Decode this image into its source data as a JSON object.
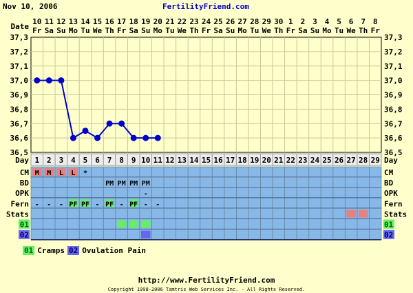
{
  "header": {
    "date": "Nov 10, 2006",
    "site": "FertilityFriend.com"
  },
  "labels": {
    "date": "Date",
    "day": "Day",
    "rows": [
      "CM",
      "BD",
      "OPK",
      "Fern",
      "Stats",
      "01",
      "02"
    ]
  },
  "colors": {
    "plot_bg": "#ffffcc",
    "grid": "#c8c89a",
    "line": "#0000cc",
    "row_bg": "#88b8e8",
    "red_cell": "#e88080",
    "green_cell": "#66ee66",
    "blue_cell": "#6666ee",
    "day_bg": "#eeeeee"
  },
  "chart_data": {
    "type": "line",
    "ylim": [
      36.5,
      37.3
    ],
    "yticks": [
      "37,3",
      "37,2",
      "37,1",
      "37,0",
      "36,9",
      "36,8",
      "36,7",
      "36,6",
      "36,5"
    ],
    "dates": [
      "10",
      "11",
      "12",
      "13",
      "14",
      "15",
      "16",
      "17",
      "18",
      "19",
      "20",
      "21",
      "22",
      "23",
      "24",
      "25",
      "26",
      "27",
      "28",
      "29",
      "30",
      "1",
      "2",
      "3",
      "4",
      "5",
      "6",
      "7",
      "8"
    ],
    "weekdays": [
      "Fr",
      "Sa",
      "Su",
      "Mo",
      "Tu",
      "We",
      "Th",
      "Fr",
      "Sa",
      "Su",
      "Mo",
      "Tu",
      "We",
      "Th",
      "Fr",
      "Sa",
      "Su",
      "Mo",
      "Tu",
      "We",
      "Th",
      "Fr",
      "Sa",
      "Su",
      "Mo",
      "Tu",
      "We",
      "Th",
      "Fr"
    ],
    "cycle_days": [
      "1",
      "2",
      "3",
      "4",
      "5",
      "6",
      "7",
      "8",
      "9",
      "10",
      "11",
      "12",
      "13",
      "14",
      "15",
      "16",
      "17",
      "18",
      "19",
      "20",
      "21",
      "22",
      "23",
      "24",
      "25",
      "26",
      "27",
      "28",
      "29"
    ],
    "temperatures": [
      37.0,
      37.0,
      37.0,
      36.6,
      36.65,
      36.6,
      36.7,
      36.7,
      36.6,
      36.6,
      36.6
    ],
    "rows": {
      "CM": [
        {
          "day": 1,
          "text": "M",
          "color": "#e88080"
        },
        {
          "day": 2,
          "text": "M",
          "color": "#e88080"
        },
        {
          "day": 3,
          "text": "L",
          "color": "#e88080"
        },
        {
          "day": 4,
          "text": "L",
          "color": "#e88080"
        },
        {
          "day": 5,
          "text": "*"
        }
      ],
      "BD": [
        {
          "day": 7,
          "text": "PM"
        },
        {
          "day": 8,
          "text": "PM"
        },
        {
          "day": 9,
          "text": "PM"
        },
        {
          "day": 10,
          "text": "PM"
        }
      ],
      "OPK": [
        {
          "day": 10,
          "text": "-"
        }
      ],
      "Fern": [
        {
          "day": 1,
          "text": "-"
        },
        {
          "day": 2,
          "text": "-"
        },
        {
          "day": 3,
          "text": "-"
        },
        {
          "day": 4,
          "text": "PF",
          "color": "#66ee66"
        },
        {
          "day": 5,
          "text": "PF",
          "color": "#66ee66"
        },
        {
          "day": 6,
          "text": "-"
        },
        {
          "day": 7,
          "text": "PF",
          "color": "#66ee66"
        },
        {
          "day": 8,
          "text": "-"
        },
        {
          "day": 9,
          "text": "PF",
          "color": "#66ee66"
        },
        {
          "day": 10,
          "text": "-"
        },
        {
          "day": 11,
          "text": "-"
        }
      ],
      "Stats": [
        {
          "day": 27,
          "text": "",
          "color": "#e88080"
        },
        {
          "day": 28,
          "text": "",
          "color": "#e88080"
        }
      ],
      "01": [
        {
          "day": 8,
          "text": "",
          "color": "#66ee66"
        },
        {
          "day": 9,
          "text": "",
          "color": "#66ee66"
        },
        {
          "day": 10,
          "text": "",
          "color": "#66ee66"
        }
      ],
      "02": [
        {
          "day": 10,
          "text": "",
          "color": "#6666ee"
        }
      ]
    }
  },
  "legend": [
    {
      "code": "01",
      "label": "Cramps",
      "color": "#66ee66"
    },
    {
      "code": "02",
      "label": "Ovulation Pain",
      "color": "#6666ee"
    }
  ],
  "footer": {
    "url": "http://www.FertilityFriend.com",
    "copyright": "Copyright 1998-2006 Tamtris Web Services Inc. - All Rights Reserved."
  }
}
